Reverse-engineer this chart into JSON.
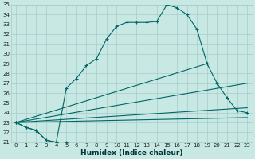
{
  "xlabel": "Humidex (Indice chaleur)",
  "bg_color": "#c8e8e4",
  "grid_color": "#a8cccc",
  "line_color": "#006666",
  "xlim": [
    -0.5,
    23.5
  ],
  "ylim": [
    21,
    35
  ],
  "xticks": [
    0,
    1,
    2,
    3,
    4,
    5,
    6,
    7,
    8,
    9,
    10,
    11,
    12,
    13,
    14,
    15,
    16,
    17,
    18,
    19,
    20,
    21,
    22,
    23
  ],
  "yticks": [
    21,
    22,
    23,
    24,
    25,
    26,
    27,
    28,
    29,
    30,
    31,
    32,
    33,
    34,
    35
  ],
  "curve1_x": [
    0,
    1,
    2,
    3,
    4,
    5,
    6,
    7,
    8,
    9,
    10,
    11,
    12,
    13,
    14,
    15,
    16,
    17,
    18,
    19
  ],
  "curve1_y": [
    23.0,
    22.5,
    22.2,
    21.2,
    21.0,
    26.5,
    27.5,
    28.8,
    29.5,
    31.5,
    32.8,
    33.2,
    33.2,
    33.2,
    33.3,
    35.0,
    34.7,
    34.0,
    32.5,
    29.0
  ],
  "curve2_x": [
    0,
    19,
    20,
    21,
    22,
    23
  ],
  "curve2_y": [
    23.0,
    29.0,
    27.0,
    25.5,
    24.2,
    24.0
  ],
  "line1_x": [
    0,
    23
  ],
  "line1_y": [
    23.0,
    27.0
  ],
  "line2_x": [
    0,
    23
  ],
  "line2_y": [
    23.0,
    24.5
  ],
  "line3_x": [
    0,
    23
  ],
  "line3_y": [
    23.0,
    23.5
  ],
  "bottom_x": [
    0,
    1,
    2,
    3,
    4,
    5
  ],
  "bottom_y": [
    23.0,
    22.5,
    22.2,
    21.2,
    21.0,
    21.0
  ]
}
